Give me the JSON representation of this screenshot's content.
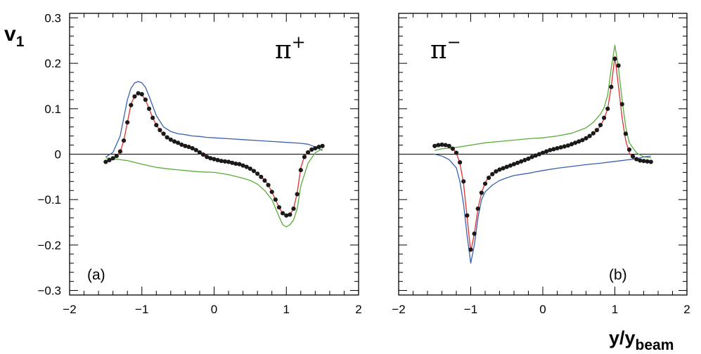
{
  "chart_data": [
    {
      "type": "line",
      "panel_label": "(a)",
      "particle": "π",
      "particle_charge": "+",
      "ylabel": "v",
      "ylabel_sub": "1",
      "xlabel": "",
      "xlim": [
        -2,
        2
      ],
      "ylim": [
        -0.31,
        0.31
      ],
      "x_ticks": [
        -2,
        -1,
        0,
        1,
        2
      ],
      "x_tick_labels": [
        "−2",
        "−1",
        "0",
        "1",
        "2"
      ],
      "y_ticks": [
        -0.3,
        -0.2,
        -0.1,
        0,
        0.1,
        0.2,
        0.3
      ],
      "y_tick_labels": [
        "−0.3",
        "−0.2",
        "−0.1",
        "0",
        "0.1",
        "0.2",
        "0.3"
      ],
      "zero_line": true,
      "grid": false,
      "series": [
        {
          "color": "#3a5fb0",
          "style": "line",
          "x": [
            -1.5,
            -1.4,
            -1.3,
            -1.2,
            -1.15,
            -1.1,
            -1.05,
            -1.0,
            -0.95,
            -0.9,
            -0.85,
            -0.8,
            -0.7,
            -0.6,
            -0.5,
            -0.4,
            -0.3,
            -0.2,
            -0.1,
            0.0,
            0.2,
            0.4,
            0.6,
            0.8,
            1.0,
            1.2,
            1.3,
            1.4,
            1.5
          ],
          "y": [
            -0.006,
            0.004,
            0.04,
            0.12,
            0.145,
            0.157,
            0.16,
            0.157,
            0.147,
            0.128,
            0.106,
            0.085,
            0.06,
            0.05,
            0.045,
            0.043,
            0.04,
            0.039,
            0.037,
            0.036,
            0.034,
            0.032,
            0.03,
            0.028,
            0.026,
            0.024,
            0.022,
            0.016,
            0.008
          ]
        },
        {
          "color": "#5aac3a",
          "style": "line",
          "x": [
            -1.5,
            -1.3,
            -1.2,
            -1.0,
            -0.8,
            -0.6,
            -0.4,
            -0.2,
            0.0,
            0.2,
            0.4,
            0.5,
            0.6,
            0.7,
            0.8,
            0.9,
            0.95,
            1.0,
            1.05,
            1.1,
            1.15,
            1.2,
            1.3,
            1.4,
            1.5
          ],
          "y": [
            -0.008,
            -0.012,
            -0.014,
            -0.022,
            -0.029,
            -0.033,
            -0.036,
            -0.039,
            -0.04,
            -0.045,
            -0.053,
            -0.058,
            -0.066,
            -0.08,
            -0.1,
            -0.138,
            -0.155,
            -0.16,
            -0.155,
            -0.145,
            -0.12,
            -0.07,
            -0.02,
            0.003,
            0.012
          ]
        },
        {
          "color": "#e03030",
          "style": "line",
          "x": [
            -1.5,
            -1.4,
            -1.3,
            -1.25,
            -1.2,
            -1.15,
            -1.1,
            -1.05,
            -1.0,
            -0.95,
            -0.9,
            -0.85,
            -0.8,
            -0.75,
            -0.7,
            -0.6,
            -0.5,
            -0.4,
            -0.3,
            -0.2,
            -0.1,
            0.0,
            0.1,
            0.2,
            0.3,
            0.4,
            0.5,
            0.6,
            0.7,
            0.75,
            0.8,
            0.85,
            0.9,
            0.95,
            1.0,
            1.05,
            1.1,
            1.15,
            1.2,
            1.25,
            1.3,
            1.4,
            1.5
          ],
          "y": [
            -0.018,
            -0.01,
            0.005,
            0.03,
            0.07,
            0.11,
            0.128,
            0.134,
            0.13,
            0.12,
            0.1,
            0.08,
            0.064,
            0.052,
            0.043,
            0.031,
            0.024,
            0.018,
            0.012,
            0.005,
            -0.003,
            -0.01,
            -0.014,
            -0.017,
            -0.021,
            -0.026,
            -0.033,
            -0.043,
            -0.057,
            -0.068,
            -0.083,
            -0.1,
            -0.118,
            -0.13,
            -0.135,
            -0.133,
            -0.12,
            -0.085,
            -0.03,
            -0.005,
            0.005,
            0.012,
            0.018
          ]
        },
        {
          "color": "#1a1a1a",
          "style": "dots",
          "x": [
            -1.5,
            -1.45,
            -1.4,
            -1.35,
            -1.3,
            -1.25,
            -1.2,
            -1.15,
            -1.1,
            -1.05,
            -1.0,
            -0.95,
            -0.9,
            -0.85,
            -0.8,
            -0.75,
            -0.7,
            -0.65,
            -0.6,
            -0.55,
            -0.5,
            -0.45,
            -0.4,
            -0.35,
            -0.3,
            -0.25,
            -0.2,
            -0.15,
            -0.1,
            -0.05,
            0.0,
            0.05,
            0.1,
            0.15,
            0.2,
            0.25,
            0.3,
            0.35,
            0.4,
            0.45,
            0.5,
            0.55,
            0.6,
            0.65,
            0.7,
            0.75,
            0.8,
            0.85,
            0.9,
            0.95,
            1.0,
            1.05,
            1.1,
            1.15,
            1.2,
            1.25,
            1.3,
            1.35,
            1.4,
            1.45,
            1.5
          ],
          "y": [
            -0.017,
            -0.013,
            -0.009,
            -0.004,
            0.006,
            0.03,
            0.07,
            0.108,
            0.127,
            0.134,
            0.132,
            0.12,
            0.1,
            0.08,
            0.064,
            0.053,
            0.045,
            0.037,
            0.032,
            0.028,
            0.025,
            0.021,
            0.018,
            0.016,
            0.013,
            0.009,
            0.004,
            -0.001,
            -0.006,
            -0.009,
            -0.011,
            -0.013,
            -0.015,
            -0.016,
            -0.017,
            -0.019,
            -0.021,
            -0.022,
            -0.025,
            -0.028,
            -0.032,
            -0.037,
            -0.043,
            -0.05,
            -0.058,
            -0.068,
            -0.083,
            -0.1,
            -0.117,
            -0.13,
            -0.135,
            -0.133,
            -0.12,
            -0.088,
            -0.035,
            -0.006,
            0.004,
            0.01,
            0.013,
            0.016,
            0.018
          ]
        }
      ]
    },
    {
      "type": "line",
      "panel_label": "(b)",
      "particle": "π",
      "particle_charge": "−",
      "ylabel": "",
      "xlabel": "y/y",
      "xlabel_sub": "beam",
      "xlim": [
        -2,
        2
      ],
      "ylim": [
        -0.31,
        0.31
      ],
      "x_ticks": [
        -2,
        -1,
        0,
        1,
        2
      ],
      "x_tick_labels": [
        "−2",
        "−1",
        "0",
        "1",
        "2"
      ],
      "y_ticks": [
        -0.3,
        -0.2,
        -0.1,
        0,
        0.1,
        0.2,
        0.3
      ],
      "zero_line": true,
      "grid": false,
      "series": [
        {
          "color": "#5aac3a",
          "style": "line",
          "x": [
            -1.5,
            -1.4,
            -1.3,
            -1.2,
            -1.0,
            -0.8,
            -0.6,
            -0.4,
            -0.2,
            0.0,
            0.2,
            0.4,
            0.5,
            0.6,
            0.7,
            0.8,
            0.85,
            0.9,
            0.95,
            1.0,
            1.05,
            1.1,
            1.15,
            1.2,
            1.3,
            1.4,
            1.5
          ],
          "y": [
            0.008,
            0.012,
            0.013,
            0.015,
            0.02,
            0.025,
            0.028,
            0.031,
            0.034,
            0.036,
            0.04,
            0.046,
            0.052,
            0.058,
            0.07,
            0.088,
            0.102,
            0.13,
            0.19,
            0.24,
            0.19,
            0.12,
            0.06,
            0.025,
            0.003,
            -0.006,
            -0.008
          ]
        },
        {
          "color": "#3a5fb0",
          "style": "line",
          "x": [
            -1.5,
            -1.4,
            -1.3,
            -1.2,
            -1.15,
            -1.1,
            -1.05,
            -1.0,
            -0.95,
            -0.9,
            -0.85,
            -0.8,
            -0.7,
            -0.6,
            -0.5,
            -0.4,
            -0.2,
            0.0,
            0.2,
            0.4,
            0.6,
            0.8,
            1.0,
            1.2,
            1.3,
            1.4,
            1.5
          ],
          "y": [
            0.0,
            -0.004,
            -0.012,
            -0.03,
            -0.06,
            -0.11,
            -0.18,
            -0.24,
            -0.2,
            -0.14,
            -0.1,
            -0.083,
            -0.068,
            -0.058,
            -0.052,
            -0.047,
            -0.042,
            -0.036,
            -0.031,
            -0.027,
            -0.023,
            -0.02,
            -0.016,
            -0.012,
            -0.01,
            -0.006,
            -0.004
          ]
        },
        {
          "color": "#e03030",
          "style": "line",
          "x": [
            -1.5,
            -1.4,
            -1.3,
            -1.25,
            -1.2,
            -1.15,
            -1.1,
            -1.05,
            -1.0,
            -0.95,
            -0.9,
            -0.85,
            -0.8,
            -0.75,
            -0.7,
            -0.6,
            -0.5,
            -0.4,
            -0.3,
            -0.2,
            -0.1,
            0.0,
            0.1,
            0.2,
            0.3,
            0.4,
            0.5,
            0.6,
            0.7,
            0.75,
            0.8,
            0.85,
            0.9,
            0.95,
            1.0,
            1.05,
            1.1,
            1.15,
            1.2,
            1.25,
            1.3,
            1.4,
            1.5
          ],
          "y": [
            0.018,
            0.02,
            0.018,
            0.012,
            0.003,
            -0.02,
            -0.065,
            -0.14,
            -0.215,
            -0.175,
            -0.12,
            -0.085,
            -0.063,
            -0.05,
            -0.043,
            -0.034,
            -0.028,
            -0.022,
            -0.016,
            -0.01,
            -0.004,
            0.002,
            0.007,
            0.012,
            0.016,
            0.021,
            0.027,
            0.034,
            0.045,
            0.052,
            0.062,
            0.078,
            0.1,
            0.15,
            0.215,
            0.15,
            0.08,
            0.03,
            0.003,
            -0.008,
            -0.014,
            -0.016,
            -0.018
          ]
        },
        {
          "color": "#1a1a1a",
          "style": "dots",
          "x": [
            -1.5,
            -1.45,
            -1.4,
            -1.35,
            -1.3,
            -1.25,
            -1.2,
            -1.15,
            -1.1,
            -1.05,
            -1.0,
            -0.95,
            -0.9,
            -0.85,
            -0.8,
            -0.75,
            -0.7,
            -0.65,
            -0.6,
            -0.55,
            -0.5,
            -0.45,
            -0.4,
            -0.35,
            -0.3,
            -0.25,
            -0.2,
            -0.15,
            -0.1,
            -0.05,
            0.0,
            0.05,
            0.1,
            0.15,
            0.2,
            0.25,
            0.3,
            0.35,
            0.4,
            0.45,
            0.5,
            0.55,
            0.6,
            0.65,
            0.7,
            0.75,
            0.8,
            0.85,
            0.9,
            0.95,
            1.0,
            1.05,
            1.1,
            1.15,
            1.2,
            1.25,
            1.3,
            1.35,
            1.4,
            1.45,
            1.5
          ],
          "y": [
            0.018,
            0.02,
            0.021,
            0.02,
            0.018,
            0.012,
            0.003,
            -0.018,
            -0.06,
            -0.135,
            -0.21,
            -0.175,
            -0.12,
            -0.085,
            -0.065,
            -0.052,
            -0.044,
            -0.038,
            -0.034,
            -0.031,
            -0.028,
            -0.025,
            -0.022,
            -0.019,
            -0.016,
            -0.013,
            -0.01,
            -0.006,
            -0.003,
            0.0,
            0.003,
            0.006,
            0.009,
            0.011,
            0.013,
            0.015,
            0.017,
            0.019,
            0.022,
            0.025,
            0.028,
            0.031,
            0.035,
            0.04,
            0.046,
            0.053,
            0.064,
            0.08,
            0.1,
            0.148,
            0.21,
            0.195,
            0.11,
            0.045,
            0.01,
            -0.005,
            -0.011,
            -0.014,
            -0.015,
            -0.016,
            -0.017
          ]
        }
      ]
    }
  ]
}
